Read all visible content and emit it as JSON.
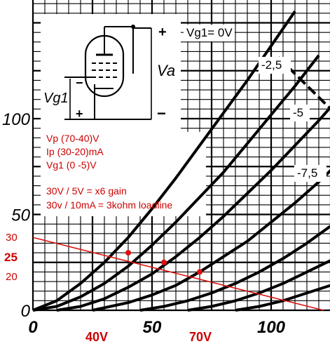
{
  "chart_data": {
    "type": "line",
    "title": "",
    "xlabel": "",
    "ylabel": "",
    "xlim": [
      0,
      125
    ],
    "ylim": [
      0,
      130
    ],
    "x_ticks": [
      "0",
      "50",
      "100"
    ],
    "y_ticks": [
      "0",
      "50",
      "100"
    ],
    "grid": true,
    "series": [
      {
        "name": "Vg1= 0V",
        "x": [
          0,
          10,
          20,
          30,
          40,
          50,
          60,
          70,
          80,
          90,
          100,
          110
        ],
        "y": [
          0,
          5,
          14,
          25,
          38,
          53,
          69,
          86,
          103,
          120,
          138,
          156
        ]
      },
      {
        "name": "-2,5",
        "x": [
          0,
          10,
          20,
          30,
          40,
          50,
          60,
          70,
          80,
          90,
          100,
          110,
          120
        ],
        "y": [
          0,
          2,
          7,
          14,
          23,
          34,
          46,
          59,
          72,
          87,
          102,
          117,
          133
        ]
      },
      {
        "name": "-5",
        "x": [
          10,
          20,
          30,
          40,
          50,
          60,
          70,
          80,
          90,
          100,
          110,
          120,
          125
        ],
        "y": [
          0,
          2,
          6,
          12,
          19,
          28,
          38,
          49,
          61,
          73,
          86,
          99,
          106
        ]
      },
      {
        "name": "-7,5",
        "x": [
          25,
          40,
          50,
          60,
          70,
          80,
          90,
          100,
          110,
          120,
          125
        ],
        "y": [
          0,
          4,
          8,
          13,
          20,
          28,
          36,
          46,
          56,
          67,
          73
        ]
      },
      {
        "name": "",
        "x": [
          45,
          55,
          65,
          75,
          85,
          95,
          105,
          115,
          125
        ],
        "y": [
          0,
          2,
          5,
          9,
          14,
          20,
          27,
          35,
          44
        ]
      },
      {
        "name": "",
        "x": [
          65,
          75,
          85,
          95,
          105,
          115,
          125
        ],
        "y": [
          0,
          2,
          5,
          9,
          14,
          20,
          26
        ]
      },
      {
        "name": "",
        "x": [
          85,
          95,
          105,
          115,
          125
        ],
        "y": [
          0,
          2,
          5,
          9,
          13
        ]
      }
    ],
    "dissipation_limit": {
      "x": [
        103,
        125
      ],
      "y": [
        132,
        105
      ]
    },
    "load_line": {
      "x": [
        0,
        122
      ],
      "y": [
        38,
        0
      ],
      "points": [
        {
          "x": 40,
          "y": 30
        },
        {
          "x": 55,
          "y": 25
        },
        {
          "x": 70,
          "y": 20
        }
      ]
    },
    "red_y_labels": [
      "30",
      "25",
      "20"
    ],
    "red_x_labels": [
      "40V",
      "70V"
    ],
    "annotations": [
      "Vp (70-40)V",
      "Ip (30-20)mA",
      "Vg1 (0 -5)V",
      "30V / 5V = x6 gain",
      "30v / 10mA = 3kohm loadline"
    ]
  },
  "schematic": {
    "va_label": "Va",
    "vg_label": "Vg1",
    "plus": "+",
    "minus": "−"
  },
  "colors": {
    "curve": "#000000",
    "grid": "#000000",
    "loadline": "#e01010",
    "notes": "#cc0000"
  }
}
